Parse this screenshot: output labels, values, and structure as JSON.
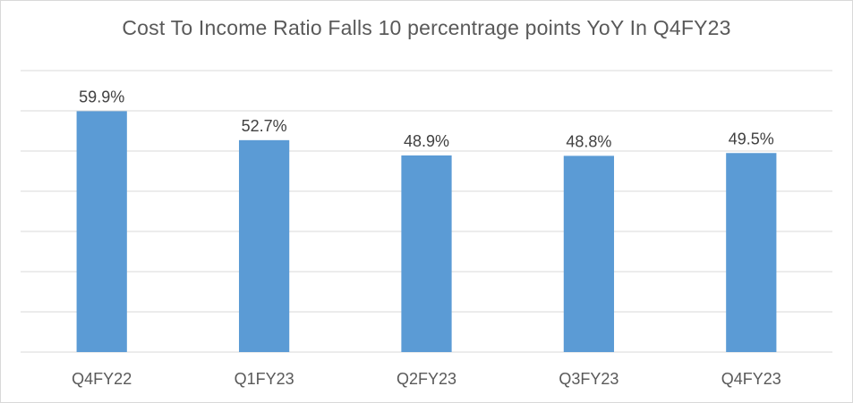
{
  "chart_data": {
    "type": "bar",
    "title": "Cost To Income Ratio Falls 10 percentrage points YoY In Q4FY23",
    "categories": [
      "Q4FY22",
      "Q1FY23",
      "Q2FY23",
      "Q3FY23",
      "Q4FY23"
    ],
    "values": [
      59.9,
      52.7,
      48.9,
      48.8,
      49.5
    ],
    "data_labels": [
      "59.9%",
      "52.7%",
      "48.9%",
      "48.8%",
      "49.5%"
    ],
    "ylim": [
      0,
      70
    ],
    "y_gridline_step": 10,
    "y_tick_labels_visible": false,
    "grid": true,
    "legend": "none",
    "colors": {
      "bar": "#5b9bd5",
      "grid": "#d9d9d9"
    }
  }
}
